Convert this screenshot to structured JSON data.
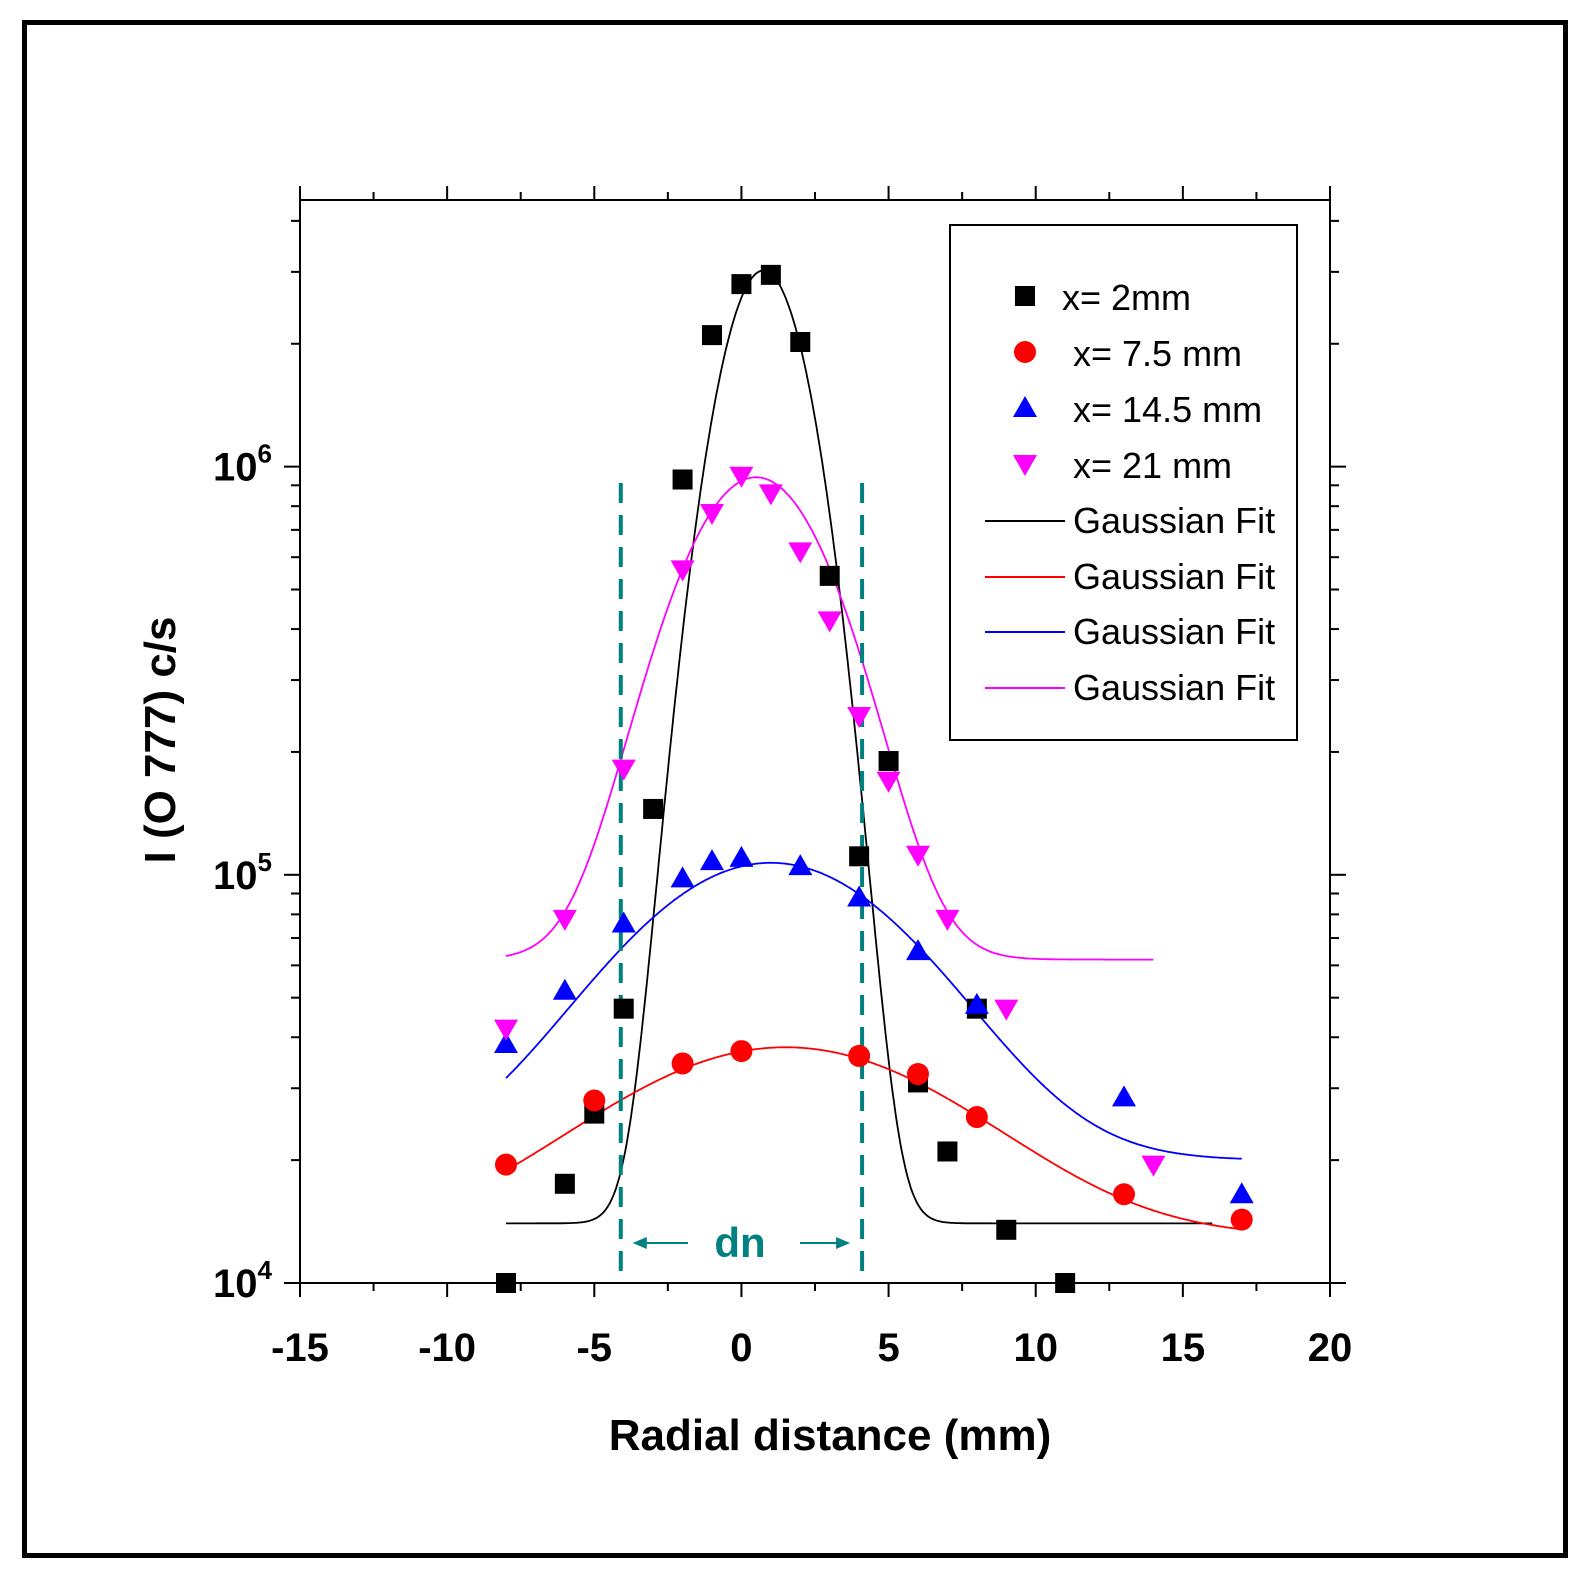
{
  "chart_data": {
    "type": "scatter",
    "title": "",
    "xlabel": "Radial distance (mm)",
    "ylabel": "I (O 777) c/s",
    "xlim": [
      -15,
      20
    ],
    "ylim": [
      10000,
      4500000
    ],
    "yscale": "log",
    "x_ticks": [
      -15,
      -10,
      -5,
      0,
      5,
      10,
      15,
      20
    ],
    "x_tick_labels": [
      "-15",
      "-10",
      "-5",
      "0",
      "5",
      "10",
      "15",
      "20"
    ],
    "y_ticks": [
      {
        "value": 10000,
        "base": "10",
        "exp": "4"
      },
      {
        "value": 100000,
        "base": "10",
        "exp": "5"
      },
      {
        "value": 1000000,
        "base": "10",
        "exp": "6"
      }
    ],
    "series": [
      {
        "name": "x= 2mm",
        "marker": "square",
        "color": "#000000",
        "points": [
          [
            -8,
            9800
          ],
          [
            -6,
            17500
          ],
          [
            -5,
            26000
          ],
          [
            -4,
            47000
          ],
          [
            -3,
            145000
          ],
          [
            -2,
            930000
          ],
          [
            -1,
            2100000
          ],
          [
            0,
            2800000
          ],
          [
            1,
            2950000
          ],
          [
            2,
            2020000
          ],
          [
            3,
            540000
          ],
          [
            4,
            111000
          ],
          [
            5,
            190000
          ],
          [
            6,
            31000
          ],
          [
            7,
            21000
          ],
          [
            8,
            47000
          ],
          [
            9,
            13500
          ],
          [
            11,
            9900
          ]
        ]
      },
      {
        "name": "x= 7.5 mm",
        "marker": "circle",
        "color": "#ff0000",
        "points": [
          [
            -8,
            19500
          ],
          [
            -5,
            28000
          ],
          [
            -2,
            34500
          ],
          [
            0,
            37000
          ],
          [
            4,
            36000
          ],
          [
            6,
            32500
          ],
          [
            8,
            25500
          ],
          [
            13,
            16500
          ],
          [
            17,
            14300
          ]
        ]
      },
      {
        "name": "x= 14.5 mm",
        "marker": "triangle-up",
        "color": "#0000ff",
        "points": [
          [
            -8,
            38500
          ],
          [
            -6,
            52000
          ],
          [
            -4,
            76000
          ],
          [
            -2,
            98000
          ],
          [
            -1,
            108000
          ],
          [
            0,
            110000
          ],
          [
            2,
            105000
          ],
          [
            4,
            88000
          ],
          [
            6,
            65000
          ],
          [
            8,
            48000
          ],
          [
            13,
            28500
          ],
          [
            17,
            16500
          ]
        ]
      },
      {
        "name": "x= 21 mm",
        "marker": "triangle-down",
        "color": "#ff00ff",
        "points": [
          [
            -8,
            42000
          ],
          [
            -6,
            78000
          ],
          [
            -4,
            182000
          ],
          [
            -2,
            560000
          ],
          [
            -1,
            770000
          ],
          [
            0,
            950000
          ],
          [
            1,
            860000
          ],
          [
            2,
            620000
          ],
          [
            3,
            420000
          ],
          [
            4,
            245000
          ],
          [
            5,
            170000
          ],
          [
            6,
            112000
          ],
          [
            7,
            78000
          ],
          [
            9,
            47000
          ],
          [
            14,
            19500
          ]
        ]
      }
    ],
    "fits": [
      {
        "name": "Gaussian Fit",
        "color": "#000000",
        "y0": 14000,
        "A": 3010000,
        "xc": 0.75,
        "sigma": 1.35,
        "xmin": -8,
        "xmax": 16
      },
      {
        "name": "Gaussian Fit",
        "color": "#ff0000",
        "y0": 13000,
        "A": 24800,
        "xc": 1.5,
        "sigma": 5.6,
        "xmin": -8,
        "xmax": 17
      },
      {
        "name": "Gaussian Fit",
        "color": "#0000ff",
        "y0": 20000,
        "A": 87000,
        "xc": 1.0,
        "sigma": 4.5,
        "xmin": -8,
        "xmax": 17
      },
      {
        "name": "Gaussian Fit",
        "color": "#ff00ff",
        "y0": 62000,
        "A": 880000,
        "xc": 0.5,
        "sigma": 2.35,
        "xmin": -8,
        "xmax": 14
      }
    ],
    "annotation": {
      "label": "dn",
      "x_left": -4.1,
      "x_right": 4.1,
      "color": "#008080"
    },
    "legend_position": "top-right"
  }
}
